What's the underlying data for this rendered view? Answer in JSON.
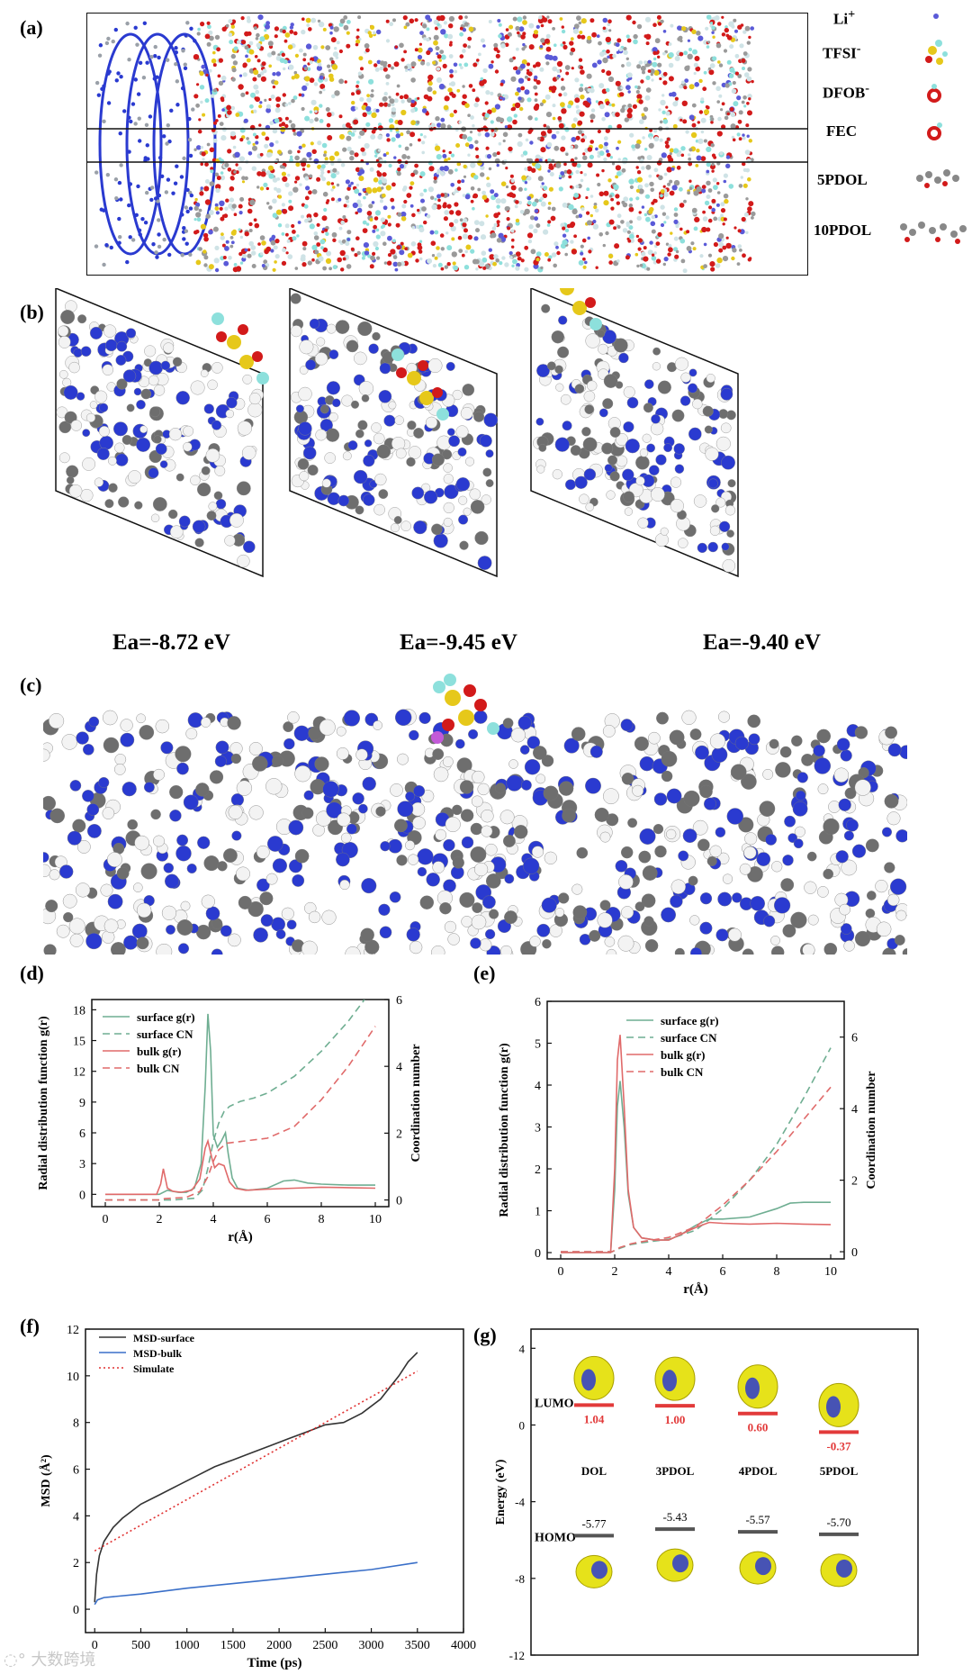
{
  "panels": {
    "a": {
      "label": "(a)",
      "legend": [
        {
          "text": "Li",
          "sup": "+",
          "color": "#5a5ad8"
        },
        {
          "text": "TFSI",
          "sup": "-",
          "color": "#d8c21a"
        },
        {
          "text": "DFOB",
          "sup": "-",
          "color": "#d22020"
        },
        {
          "text": "FEC",
          "sup": "",
          "color": "#d22020"
        },
        {
          "text": "5PDOL",
          "sup": "",
          "color": "#888888"
        },
        {
          "text": "10PDOL",
          "sup": "",
          "color": "#888888"
        }
      ]
    },
    "b": {
      "label": "(b)",
      "energies": [
        "Ea=-8.72 eV",
        "Ea=-9.45 eV",
        "Ea=-9.40 eV"
      ]
    },
    "c": {
      "label": "(c)"
    },
    "d": {
      "label": "(d)"
    },
    "e": {
      "label": "(e)"
    },
    "f": {
      "label": "(f)"
    },
    "g": {
      "label": "(g)"
    }
  },
  "colors": {
    "surface": "#6fae92",
    "bulk": "#e06a6a",
    "msd_surface": "#333333",
    "msd_bulk": "#3a6fc8",
    "simulate": "#e03030",
    "framework": "#2a3ad0",
    "carbon": "#6e6e6e",
    "hydrogen": "#e8e8e8",
    "oxygen": "#d21a1a",
    "sulfur": "#e6c81a",
    "fluorine": "#8de0dc",
    "lumo_bar": "#e23a3a",
    "homo_bar": "#555555"
  },
  "chart_data": [
    {
      "id": "d",
      "type": "line",
      "xlabel": "r(Å)",
      "ylabel": "Radial distribution function g(r)",
      "y2label": "Coordination number",
      "xlim": [
        -0.5,
        10.5
      ],
      "ylim": [
        -1.2,
        19
      ],
      "y2lim": [
        -0.2,
        6
      ],
      "xticks": [
        0,
        2,
        4,
        6,
        8,
        10
      ],
      "yticks": [
        0,
        3,
        6,
        9,
        12,
        15,
        18
      ],
      "y2ticks": [
        0,
        2,
        4,
        6
      ],
      "legend_position": "top-left",
      "series": [
        {
          "name": "surface g(r)",
          "axis": "left",
          "style": "solid",
          "color": "#6fae92",
          "x": [
            0,
            2.0,
            2.3,
            2.7,
            3.0,
            3.3,
            3.55,
            3.7,
            3.8,
            3.9,
            4.0,
            4.15,
            4.3,
            4.45,
            4.55,
            4.7,
            4.9,
            5.3,
            6.0,
            6.6,
            7.0,
            7.5,
            8.0,
            9.0,
            10.0
          ],
          "y": [
            0,
            0,
            0.4,
            0.2,
            0.2,
            0.6,
            3.0,
            10.5,
            17.6,
            14.0,
            5.8,
            4.6,
            5.2,
            6.0,
            4.0,
            1.6,
            0.6,
            0.4,
            0.6,
            1.3,
            1.4,
            1.1,
            1.0,
            0.9,
            0.9
          ]
        },
        {
          "name": "surface CN",
          "axis": "right",
          "style": "dashed",
          "color": "#6fae92",
          "x": [
            0,
            2.5,
            3.3,
            3.6,
            3.8,
            4.0,
            4.2,
            4.4,
            4.6,
            5.0,
            5.5,
            6.0,
            7.0,
            8.0,
            9.0,
            9.6
          ],
          "y": [
            0,
            0,
            0.05,
            0.3,
            0.95,
            1.75,
            2.3,
            2.65,
            2.8,
            2.95,
            3.05,
            3.2,
            3.7,
            4.45,
            5.35,
            6.0
          ]
        },
        {
          "name": "bulk g(r)",
          "axis": "left",
          "style": "solid",
          "color": "#e06a6a",
          "x": [
            0,
            1.9,
            2.05,
            2.15,
            2.3,
            2.5,
            2.8,
            3.2,
            3.5,
            3.7,
            3.8,
            3.95,
            4.05,
            4.2,
            4.4,
            4.6,
            4.8,
            5.2,
            6.0,
            7.0,
            8.0,
            9.0,
            10.0
          ],
          "y": [
            0,
            0,
            1.0,
            2.5,
            0.6,
            0.3,
            0.2,
            0.4,
            1.5,
            4.5,
            5.2,
            3.5,
            2.6,
            3.0,
            2.8,
            1.2,
            0.6,
            0.4,
            0.5,
            0.6,
            0.7,
            0.65,
            0.6
          ]
        },
        {
          "name": "bulk CN",
          "axis": "right",
          "style": "dashed",
          "color": "#e06a6a",
          "x": [
            0,
            2.0,
            2.2,
            3.0,
            3.5,
            3.8,
            4.0,
            4.2,
            4.5,
            5.0,
            6.0,
            7.0,
            8.0,
            9.0,
            10.0
          ],
          "y": [
            0,
            0,
            0.04,
            0.08,
            0.25,
            0.7,
            1.15,
            1.5,
            1.7,
            1.75,
            1.85,
            2.2,
            3.0,
            4.0,
            5.2
          ]
        }
      ]
    },
    {
      "id": "e",
      "type": "line",
      "xlabel": "r(Å)",
      "ylabel": "Radial distribution function g(r)",
      "y2label": "Coordination number",
      "xlim": [
        -0.5,
        10.5
      ],
      "ylim": [
        -0.15,
        6
      ],
      "y2lim": [
        -0.2,
        7
      ],
      "xticks": [
        0,
        2,
        4,
        6,
        8,
        10
      ],
      "yticks": [
        0,
        1,
        2,
        3,
        4,
        5,
        6
      ],
      "y2ticks": [
        0,
        2,
        4,
        6
      ],
      "legend_position": "top-right",
      "series": [
        {
          "name": "surface g(r)",
          "axis": "left",
          "style": "solid",
          "color": "#6fae92",
          "x": [
            0,
            1.85,
            2.0,
            2.1,
            2.2,
            2.35,
            2.5,
            2.7,
            3.0,
            3.5,
            4.0,
            4.5,
            5.0,
            5.5,
            6.0,
            7.0,
            8.0,
            8.5,
            9.0,
            10.0
          ],
          "y": [
            0,
            0,
            1.5,
            3.5,
            4.1,
            3.0,
            1.4,
            0.6,
            0.35,
            0.3,
            0.3,
            0.45,
            0.65,
            0.8,
            0.8,
            0.85,
            1.05,
            1.18,
            1.2,
            1.2
          ]
        },
        {
          "name": "surface CN",
          "axis": "right",
          "style": "dashed",
          "color": "#6fae92",
          "x": [
            0,
            1.9,
            2.2,
            2.6,
            3.0,
            4.0,
            5.0,
            6.0,
            7.0,
            8.0,
            9.0,
            10.0
          ],
          "y": [
            0,
            0,
            0.1,
            0.2,
            0.25,
            0.35,
            0.6,
            1.2,
            2.0,
            3.0,
            4.3,
            5.7
          ]
        },
        {
          "name": "bulk g(r)",
          "axis": "left",
          "style": "solid",
          "color": "#e06a6a",
          "x": [
            0,
            1.85,
            2.0,
            2.1,
            2.2,
            2.35,
            2.5,
            2.7,
            3.0,
            3.5,
            4.0,
            4.5,
            5.0,
            5.5,
            6.0,
            7.0,
            8.0,
            9.0,
            10.0
          ],
          "y": [
            0,
            0,
            2.0,
            4.6,
            5.2,
            3.5,
            1.5,
            0.6,
            0.35,
            0.3,
            0.3,
            0.45,
            0.6,
            0.72,
            0.7,
            0.68,
            0.7,
            0.68,
            0.67
          ]
        },
        {
          "name": "bulk CN",
          "axis": "right",
          "style": "dashed",
          "color": "#e06a6a",
          "x": [
            0,
            1.9,
            2.2,
            2.6,
            3.0,
            4.0,
            5.0,
            6.0,
            7.0,
            8.0,
            9.0,
            10.0
          ],
          "y": [
            0,
            0,
            0.12,
            0.22,
            0.28,
            0.4,
            0.7,
            1.3,
            2.0,
            2.8,
            3.7,
            4.6
          ]
        }
      ]
    },
    {
      "id": "f",
      "type": "line",
      "xlabel": "Time (ps)",
      "ylabel": "MSD (Å²)",
      "xlim": [
        -100,
        4000
      ],
      "ylim": [
        -1,
        12
      ],
      "xticks": [
        0,
        500,
        1000,
        1500,
        2000,
        2500,
        3000,
        3500,
        4000
      ],
      "yticks": [
        0,
        2,
        4,
        6,
        8,
        10,
        12
      ],
      "legend_position": "top-left",
      "series": [
        {
          "name": "MSD-surface",
          "style": "solid",
          "color": "#333333",
          "x": [
            0,
            20,
            50,
            100,
            200,
            300,
            400,
            500,
            700,
            900,
            1100,
            1300,
            1500,
            1700,
            1900,
            2100,
            2300,
            2500,
            2700,
            2900,
            3100,
            3300,
            3400,
            3500
          ],
          "y": [
            0.3,
            1.5,
            2.3,
            2.9,
            3.5,
            3.9,
            4.2,
            4.5,
            4.9,
            5.3,
            5.7,
            6.1,
            6.4,
            6.7,
            7.0,
            7.3,
            7.6,
            7.9,
            8.0,
            8.4,
            9.0,
            10.0,
            10.6,
            11.0
          ]
        },
        {
          "name": "MSD-bulk",
          "style": "solid",
          "color": "#3a6fc8",
          "x": [
            0,
            30,
            100,
            500,
            1000,
            1500,
            2000,
            2500,
            3000,
            3500
          ],
          "y": [
            0.2,
            0.4,
            0.5,
            0.65,
            0.9,
            1.1,
            1.3,
            1.5,
            1.7,
            2.0
          ]
        },
        {
          "name": "Simulate",
          "style": "dotted",
          "color": "#e03030",
          "x": [
            0,
            3500
          ],
          "y": [
            2.5,
            10.2
          ]
        }
      ]
    },
    {
      "id": "g",
      "type": "bar",
      "ylabel": "Energy (eV)",
      "ylim": [
        -12,
        5
      ],
      "yticks": [
        4,
        0,
        -4,
        -8,
        -12
      ],
      "categories": [
        "DOL",
        "3PDOL",
        "4PDOL",
        "5PDOL"
      ],
      "series": [
        {
          "name": "LUMO",
          "values": [
            1.04,
            1.0,
            0.6,
            -0.37
          ]
        },
        {
          "name": "HOMO",
          "values": [
            -5.77,
            -5.43,
            -5.57,
            -5.7
          ]
        }
      ],
      "lumo_labels": [
        "1.04",
        "1.00",
        "0.60",
        "-0.37"
      ],
      "homo_labels": [
        "-5.77",
        "-5.43",
        "-5.57",
        "-5.70"
      ]
    }
  ]
}
